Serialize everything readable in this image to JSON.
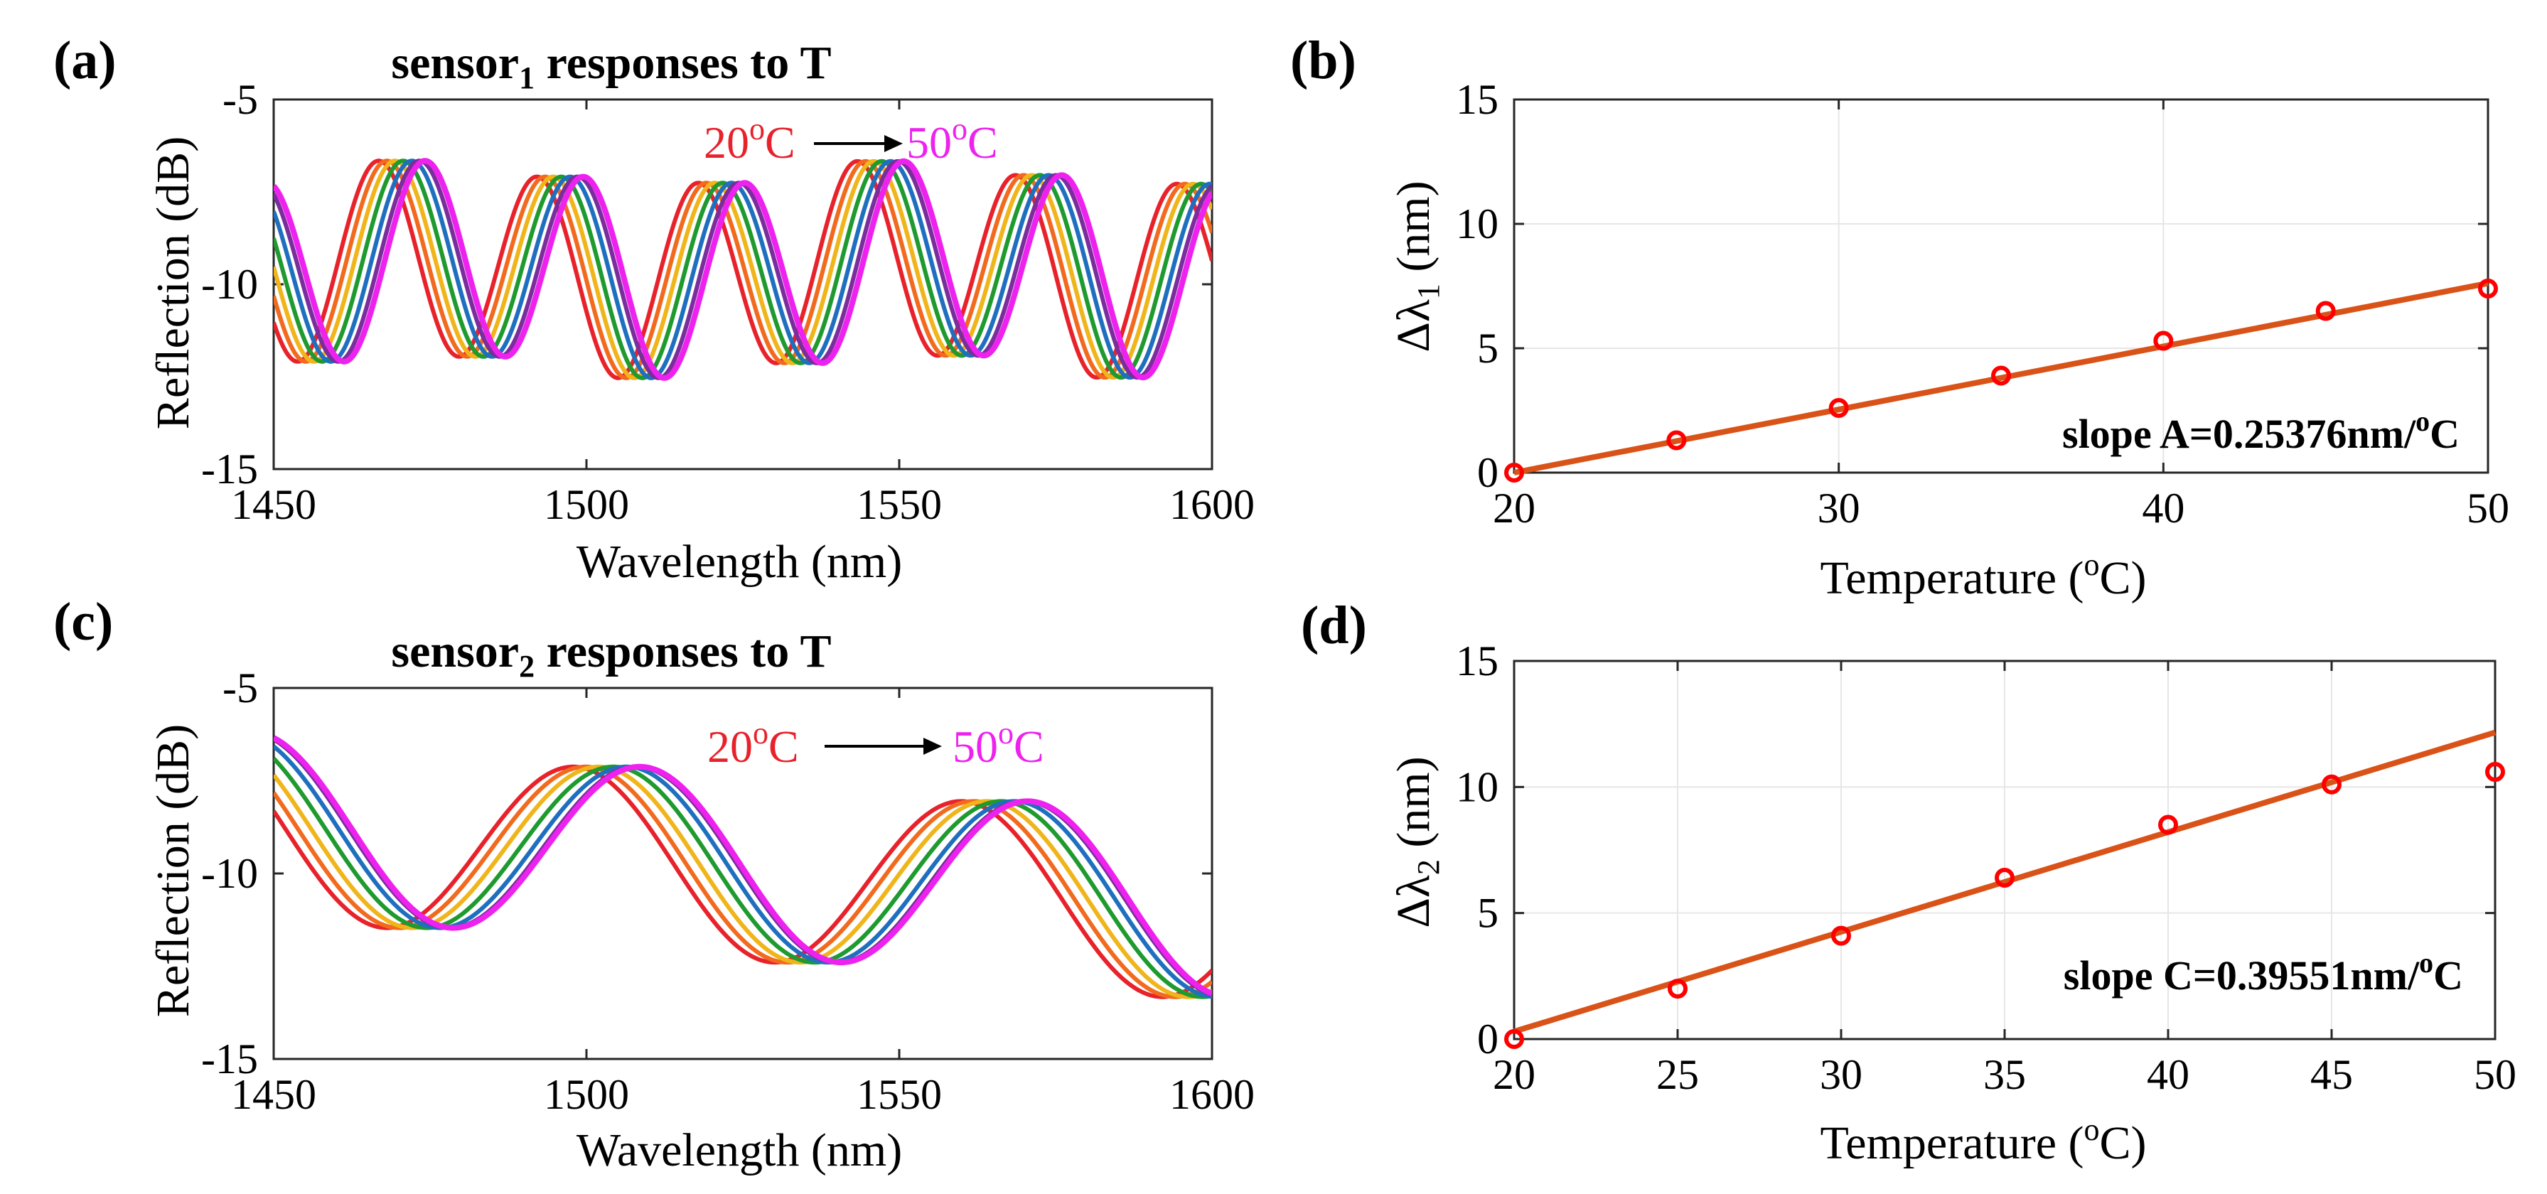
{
  "chart_data": [
    {
      "panel": "(a)",
      "type": "line",
      "title_main": "sensor",
      "title_sub": "1",
      "title_rest": " responses to T",
      "xlabel": "Wavelength (nm)",
      "ylabel": "Reflection (dB)",
      "xlim": [
        1450,
        1600
      ],
      "ylim": [
        -15,
        -5
      ],
      "xticks": [
        "1450",
        "1500",
        "1550",
        "1600"
      ],
      "yticks": [
        "-5",
        "-10",
        "-15"
      ],
      "annotation": {
        "from": "20",
        "to": "50",
        "unit": "C",
        "sup": "o",
        "from_color": "#e8222b",
        "to_color": "#ee22ee"
      },
      "series": [
        {
          "name": "20°C",
          "color": "#e8222b",
          "shift_nm": 0
        },
        {
          "name": "25°C",
          "color": "#f26a1e",
          "shift_nm": 1.3
        },
        {
          "name": "30°C",
          "color": "#f0b51a",
          "shift_nm": 2.6
        },
        {
          "name": "35°C",
          "color": "#1f9a2e",
          "shift_nm": 3.9
        },
        {
          "name": "40°C",
          "color": "#1f6fbf",
          "shift_nm": 5.3
        },
        {
          "name": "45°C",
          "color": "#7a2d9c",
          "shift_nm": 6.5
        },
        {
          "name": "50°C",
          "color": "#ee22ee",
          "shift_nm": 7.4
        }
      ],
      "base_curve": {
        "period_nm": 25.5,
        "phase_nm": 1454,
        "center_db": -9.6,
        "amplitude_db": 2.6
      }
    },
    {
      "panel": "(b)",
      "type": "scatter",
      "xlabel_main": "Temperature (",
      "xlabel_sup": "o",
      "xlabel_rest": "C)",
      "ylabel_main": "Δλ",
      "ylabel_sub": "1",
      "ylabel_rest": " (nm)",
      "xlim": [
        20,
        50
      ],
      "ylim": [
        0,
        15
      ],
      "xticks": [
        "20",
        "30",
        "40",
        "50"
      ],
      "yticks": [
        "0",
        "5",
        "10",
        "15"
      ],
      "x": [
        20,
        25,
        30,
        35,
        40,
        45,
        50
      ],
      "y": [
        0,
        1.3,
        2.6,
        3.9,
        5.3,
        6.5,
        7.4
      ],
      "fit": {
        "slope": 0.25376,
        "intercept": 0
      },
      "slope_text": "slope A=0.25376nm/",
      "slope_sup": "o",
      "slope_unit": "C",
      "fit_color": "#d95319",
      "marker_color": "#ff0000"
    },
    {
      "panel": "(c)",
      "type": "line",
      "title_main": "sensor",
      "title_sub": "2",
      "title_rest": " responses to T",
      "xlabel": "Wavelength (nm)",
      "ylabel": "Reflection (dB)",
      "xlim": [
        1450,
        1600
      ],
      "ylim": [
        -15,
        -5
      ],
      "xticks": [
        "1450",
        "1500",
        "1550",
        "1600"
      ],
      "yticks": [
        "-5",
        "-10",
        "-15"
      ],
      "annotation": {
        "from": "20",
        "to": "50",
        "unit": "C",
        "sup": "o",
        "from_color": "#e8222b",
        "to_color": "#ee22ee"
      },
      "series": [
        {
          "name": "20°C",
          "color": "#e8222b",
          "shift_nm": 0
        },
        {
          "name": "25°C",
          "color": "#f26a1e",
          "shift_nm": 2.0
        },
        {
          "name": "30°C",
          "color": "#f0b51a",
          "shift_nm": 4.1
        },
        {
          "name": "35°C",
          "color": "#1f9a2e",
          "shift_nm": 6.4
        },
        {
          "name": "40°C",
          "color": "#1f6fbf",
          "shift_nm": 8.5
        },
        {
          "name": "45°C",
          "color": "#7a2d9c",
          "shift_nm": 10.1
        },
        {
          "name": "50°C",
          "color": "#ee22ee",
          "shift_nm": 10.6
        }
      ],
      "base_curve": {
        "period_nm": 62,
        "phase_nm": 1467.5,
        "center_db": -8.8,
        "amplitude_db": 2.4,
        "trend_db_per_nm": -0.015
      }
    },
    {
      "panel": "(d)",
      "type": "scatter",
      "xlabel_main": "Temperature (",
      "xlabel_sup": "o",
      "xlabel_rest": "C)",
      "ylabel_main": "Δλ",
      "ylabel_sub": "2",
      "ylabel_rest": " (nm)",
      "xlim": [
        20,
        50
      ],
      "ylim": [
        0,
        15
      ],
      "xticks": [
        "20",
        "25",
        "30",
        "35",
        "40",
        "45",
        "50"
      ],
      "yticks": [
        "0",
        "5",
        "10",
        "15"
      ],
      "x": [
        20,
        25,
        30,
        35,
        40,
        45,
        50
      ],
      "y": [
        0,
        2.0,
        4.1,
        6.4,
        8.5,
        10.1,
        10.6
      ],
      "fit": {
        "slope": 0.39551,
        "intercept": 0.3
      },
      "slope_text": "slope C=0.39551nm/",
      "slope_sup": "o",
      "slope_unit": "C",
      "fit_color": "#d95319",
      "marker_color": "#ff0000"
    }
  ]
}
